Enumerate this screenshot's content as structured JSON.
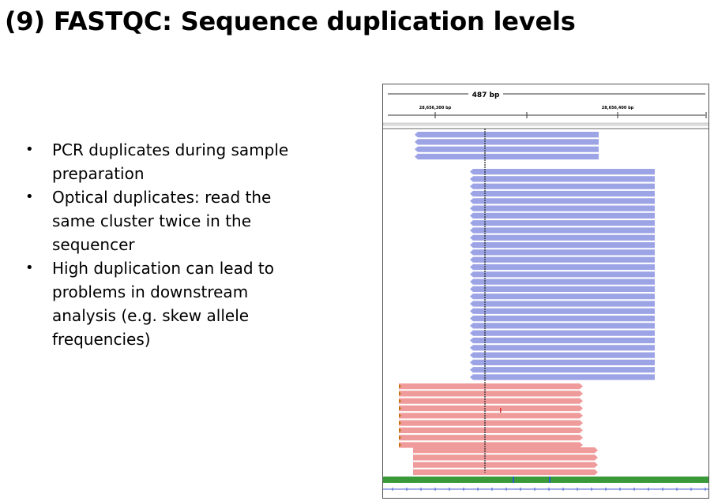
{
  "slide": {
    "title": "(9) FASTQC: Sequence duplication levels",
    "bullets": [
      "PCR duplicates during sample preparation",
      "Optical duplicates: read the same cluster twice in the sequencer",
      "High duplication can lead to problems in downstream analysis (e.g. skew allele frequencies)"
    ]
  },
  "igv": {
    "span_label": "487 bp",
    "ruler_labels": [
      "28,656,300 bp",
      "28,656,400 bp"
    ],
    "colors": {
      "reverse_read": "#9ca4e6",
      "forward_read": "#ef9b9b",
      "center_line": "#222222",
      "mismatch": "#d93030"
    },
    "read_groups": [
      {
        "strand": "reverse",
        "count": 4
      },
      {
        "strand": "reverse",
        "count": 29
      },
      {
        "strand": "forward",
        "count": 9
      },
      {
        "strand": "forward",
        "count": 4
      }
    ]
  }
}
